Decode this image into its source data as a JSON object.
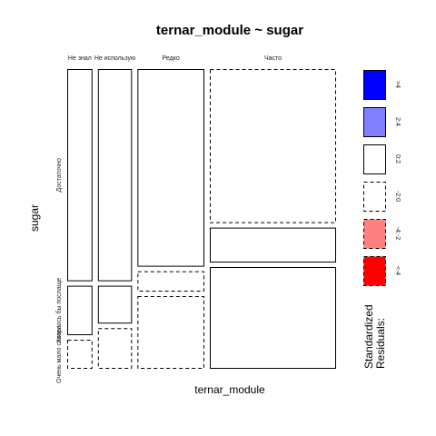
{
  "chart_data": {
    "type": "mosaic",
    "title": "ternar_module ~ sugar",
    "xlabel": "ternar_module",
    "ylabel": "sugar",
    "x_categories": [
      "Не знал",
      "Не использую",
      "Редко",
      "Часто"
    ],
    "y_categories": [
      "Достаточно",
      "Хотелось бы послаще",
      "Очень мало сахара"
    ],
    "x_proportions": [
      0.1,
      0.135,
      0.265,
      0.5
    ],
    "cells": [
      {
        "x": "Не знал",
        "y": "Достаточно",
        "proportion": 0.73,
        "residual_class": "0:2"
      },
      {
        "x": "Не знал",
        "y": "Хотелось бы послаще",
        "proportion": 0.17,
        "residual_class": "0:2"
      },
      {
        "x": "Не знал",
        "y": "Очень мало сахара",
        "proportion": 0.1,
        "residual_class": "-2:0"
      },
      {
        "x": "Не использую",
        "y": "Достаточно",
        "proportion": 0.73,
        "residual_class": "0:2"
      },
      {
        "x": "Не использую",
        "y": "Хотелось бы послаще",
        "proportion": 0.13,
        "residual_class": "0:2"
      },
      {
        "x": "Не использую",
        "y": "Очень мало сахара",
        "proportion": 0.14,
        "residual_class": "-2:0"
      },
      {
        "x": "Редко",
        "y": "Достаточно",
        "proportion": 0.68,
        "residual_class": "0:2"
      },
      {
        "x": "Редко",
        "y": "Хотелось бы послаще",
        "proportion": 0.07,
        "residual_class": "-2:0"
      },
      {
        "x": "Редко",
        "y": "Очень мало сахара",
        "proportion": 0.25,
        "residual_class": "-2:0"
      },
      {
        "x": "Часто",
        "y": "Достаточно",
        "proportion": 0.53,
        "residual_class": "-2:0"
      },
      {
        "x": "Часто",
        "y": "Хотелось бы послаще",
        "proportion": 0.12,
        "residual_class": "0:2"
      },
      {
        "x": "Часто",
        "y": "Очень мало сахара",
        "proportion": 0.35,
        "residual_class": "0:2"
      }
    ],
    "legend": {
      "title_line1": "Standardized",
      "title_line2": "Residuals:",
      "entries": [
        {
          "label": ">4",
          "fill": "#0000ff",
          "dashed": false
        },
        {
          "label": "2:4",
          "fill": "#8080ff",
          "dashed": false
        },
        {
          "label": "0:2",
          "fill": "#ffffff",
          "dashed": false
        },
        {
          "label": "-2:0",
          "fill": "#ffffff",
          "dashed": true
        },
        {
          "label": "-4:-2",
          "fill": "#ff8080",
          "dashed": true
        },
        {
          "label": "<-4",
          "fill": "#ff0000",
          "dashed": true
        }
      ]
    }
  }
}
